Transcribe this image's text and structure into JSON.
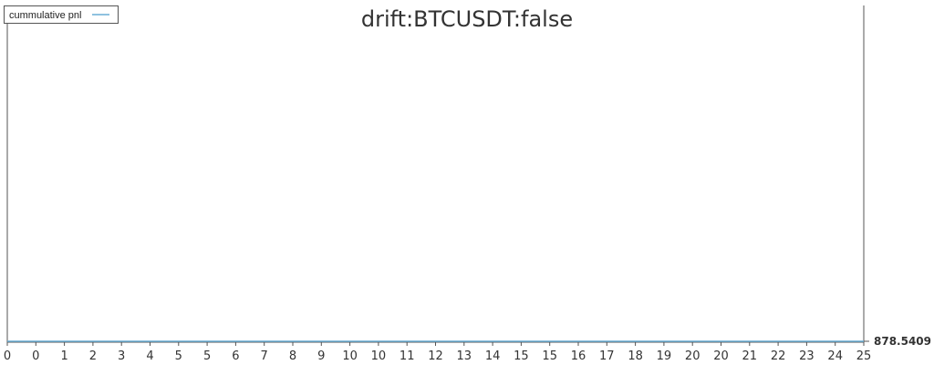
{
  "chart_data": {
    "type": "line",
    "title": "drift:BTCUSDT:false",
    "xlabel": "",
    "ylabel": "",
    "x_tick_labels": [
      "0",
      "0",
      "1",
      "2",
      "3",
      "4",
      "5",
      "5",
      "6",
      "7",
      "8",
      "9",
      "10",
      "10",
      "11",
      "12",
      "13",
      "14",
      "15",
      "15",
      "16",
      "17",
      "18",
      "19",
      "20",
      "20",
      "21",
      "22",
      "23",
      "24",
      "25"
    ],
    "xlim": [
      0,
      25
    ],
    "right_axis_labels": [
      "878.5409"
    ],
    "grid": false,
    "legend_position": "top-left",
    "series": [
      {
        "name": "cummulative pnl",
        "color": "#6aaed6",
        "x": [
          0,
          25
        ],
        "values": [
          878.5409,
          878.5409
        ]
      }
    ]
  }
}
